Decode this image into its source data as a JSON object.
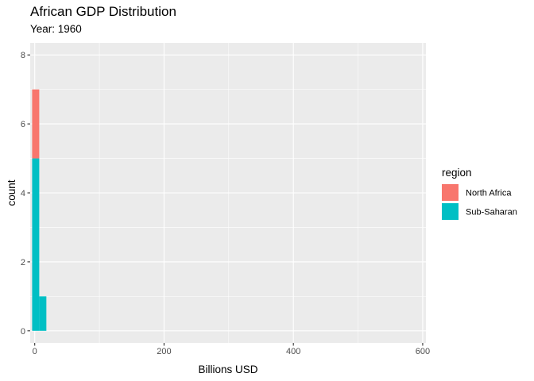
{
  "chart_data": {
    "type": "bar",
    "subtype": "stacked-histogram",
    "title": "African GDP Distribution",
    "subtitle": "Year: 1960",
    "xlabel": "Billions USD",
    "ylabel": "count",
    "xlim": [
      -7,
      605
    ],
    "ylim": [
      -0.35,
      8.35
    ],
    "xticks": [
      0,
      200,
      400,
      600
    ],
    "yticks": [
      0,
      2,
      4,
      6,
      8
    ],
    "xtick_labels": [
      "0",
      "200",
      "400",
      "600"
    ],
    "ytick_labels": [
      "0",
      "2",
      "4",
      "6",
      "8"
    ],
    "grid": true,
    "legend": {
      "title": "region",
      "position": "right",
      "items": [
        {
          "label": "North Africa",
          "color": "#F8766D"
        },
        {
          "label": "Sub-Saharan",
          "color": "#00BFC4"
        }
      ]
    },
    "bin_width": 11,
    "bins": [
      {
        "x_start": -4,
        "x_end": 7,
        "series": [
          {
            "name": "Sub-Saharan",
            "value": 5
          },
          {
            "name": "North Africa",
            "value": 2
          }
        ]
      },
      {
        "x_start": 7,
        "x_end": 18,
        "series": [
          {
            "name": "Sub-Saharan",
            "value": 1
          },
          {
            "name": "North Africa",
            "value": 0
          }
        ]
      }
    ]
  }
}
